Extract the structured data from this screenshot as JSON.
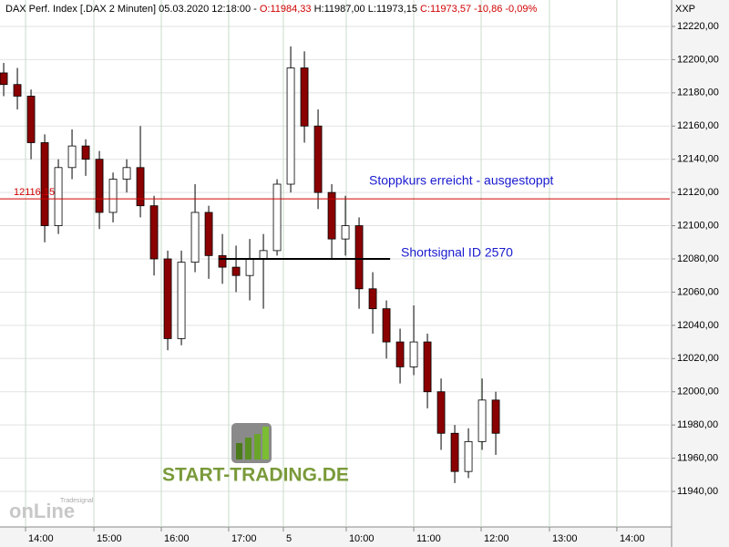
{
  "chart_data": {
    "type": "candlestick",
    "info": {
      "label": "DAX Perf. Index [.DAX  2 Minuten] 05.03.2020 12:18:00 -",
      "open": "O:11984,33",
      "high_low": "H:11987,00 L:11973,15",
      "close": "C:11973,57 -10,86 -0,09%"
    },
    "currency": "XXP",
    "colors": {
      "up": "#ffffff",
      "down": "#8b0000",
      "outline": "#000000"
    },
    "series": [
      {
        "open": [
          12192,
          12185,
          12178,
          12150,
          12100,
          12135,
          12148,
          12140,
          12108,
          12128,
          12135,
          12112,
          12080,
          12032,
          12078,
          12108,
          12082,
          12075,
          12070,
          12080,
          12085,
          12125,
          12195,
          12160,
          12120,
          12092,
          12100,
          12062,
          12050,
          12030,
          12015,
          12030,
          12000,
          11975,
          11952,
          11970,
          11995
        ],
        "high": [
          12198,
          12195,
          12182,
          12155,
          12140,
          12158,
          12152,
          12145,
          12132,
          12140,
          12160,
          12118,
          12085,
          12085,
          12125,
          12112,
          12095,
          12088,
          12092,
          12095,
          12128,
          12208,
          12205,
          12170,
          12125,
          12118,
          12105,
          12072,
          12055,
          12038,
          12052,
          12035,
          12008,
          11980,
          11978,
          12008,
          12000
        ],
        "low": [
          12178,
          12170,
          12140,
          12090,
          12095,
          12128,
          12130,
          12098,
          12102,
          12120,
          12105,
          12070,
          12025,
          12028,
          12072,
          12068,
          12065,
          12060,
          12055,
          12050,
          12082,
          12120,
          12150,
          12110,
          12080,
          12082,
          12050,
          12035,
          12020,
          12005,
          12010,
          11990,
          11965,
          11945,
          11948,
          11965,
          11962
        ],
        "close": [
          12185,
          12178,
          12150,
          12100,
          12135,
          12148,
          12140,
          12108,
          12128,
          12135,
          12112,
          12080,
          12032,
          12078,
          12108,
          12082,
          12075,
          12070,
          12080,
          12085,
          12125,
          12195,
          12160,
          12120,
          12092,
          12100,
          12062,
          12050,
          12030,
          12015,
          12030,
          12000,
          11975,
          11952,
          11970,
          11995,
          11975
        ]
      }
    ],
    "xlim": [
      -0.27,
      48.73
    ],
    "xticks": [
      {
        "value": 1.6,
        "label": "14:00"
      },
      {
        "value": 6.6,
        "label": "15:00"
      },
      {
        "value": 11.53,
        "label": "16:00"
      },
      {
        "value": 16.46,
        "label": "17:00"
      },
      {
        "value": 20.46,
        "label": "5"
      },
      {
        "value": 25.06,
        "label": "10:00"
      },
      {
        "value": 30,
        "label": "11:00"
      },
      {
        "value": 34.93,
        "label": "12:00"
      },
      {
        "value": 39.93,
        "label": "13:00"
      },
      {
        "value": 44.86,
        "label": "14:00"
      }
    ],
    "ylim": [
      11918.6,
      12235.9
    ],
    "yticks": [
      {
        "value": 11940,
        "label": "11940,00"
      },
      {
        "value": 11960,
        "label": "11960,00"
      },
      {
        "value": 11980,
        "label": "11980,00"
      },
      {
        "value": 12000,
        "label": "12000,00"
      },
      {
        "value": 12020,
        "label": "12020,00"
      },
      {
        "value": 12040,
        "label": "12040,00"
      },
      {
        "value": 12060,
        "label": "12060,00"
      },
      {
        "value": 12080,
        "label": "12080,00"
      },
      {
        "value": 12100,
        "label": "12100,00"
      },
      {
        "value": 12120,
        "label": "12120,00"
      },
      {
        "value": 12140,
        "label": "12140,00"
      },
      {
        "value": 12160,
        "label": "12160,00"
      },
      {
        "value": 12180,
        "label": "12180,00"
      },
      {
        "value": 12200,
        "label": "12200,00"
      },
      {
        "value": 12220,
        "label": "12220,00"
      }
    ],
    "grid": true,
    "stop_line": {
      "value": 12116.15,
      "label": "12116,15",
      "color": "#d00000"
    },
    "signal_line": {
      "value": 12080,
      "from": 15.73,
      "to": 28.27,
      "color": "#000000"
    },
    "annotations": [
      "Stoppkurs erreicht - ausgestoppt",
      "Shortsignal ID 2570"
    ],
    "logo": {
      "text": "START-TRADING.DE",
      "brand": "Tradesignal",
      "online": "onLine"
    }
  }
}
